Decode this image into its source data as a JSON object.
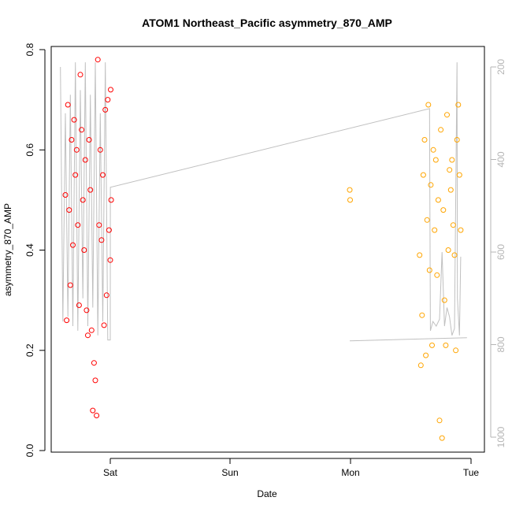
{
  "chart_data": {
    "type": "scatter",
    "title": "ATOM1 Northeast_Pacific asymmetry_870_AMP",
    "xlabel": "Date",
    "ylabel": "asymmetry_870_AMP",
    "x_ticks": [
      "Sat",
      "Sun",
      "Mon",
      "Tue"
    ],
    "y_ticks": [
      "0.0",
      "0.2",
      "0.4",
      "0.6",
      "0.8"
    ],
    "y_right_ticks": [
      "200",
      "400",
      "600",
      "800",
      "1000"
    ],
    "ylim": [
      0,
      0.8
    ],
    "y_right_lim": [
      1025,
      180
    ],
    "grid": false,
    "axis_colors": {
      "left": "#000000",
      "right": "#b5b5b5",
      "line_series": "#c0c0c0"
    },
    "series": [
      {
        "color": "#ff0000",
        "marker": "circle-open",
        "points": [
          [
            "Fri 15:00",
            0.51
          ],
          [
            "Fri 15:15",
            0.26
          ],
          [
            "Fri 15:30",
            0.69
          ],
          [
            "Fri 15:45",
            0.48
          ],
          [
            "Fri 16:00",
            0.33
          ],
          [
            "Fri 16:15",
            0.62
          ],
          [
            "Fri 16:30",
            0.41
          ],
          [
            "Fri 16:45",
            0.66
          ],
          [
            "Fri 17:00",
            0.55
          ],
          [
            "Fri 17:15",
            0.6
          ],
          [
            "Fri 17:30",
            0.45
          ],
          [
            "Fri 17:45",
            0.29
          ],
          [
            "Fri 18:00",
            0.75
          ],
          [
            "Fri 18:15",
            0.64
          ],
          [
            "Fri 18:30",
            0.5
          ],
          [
            "Fri 18:45",
            0.4
          ],
          [
            "Fri 19:00",
            0.58
          ],
          [
            "Fri 19:15",
            0.28
          ],
          [
            "Fri 19:30",
            0.23
          ],
          [
            "Fri 19:45",
            0.62
          ],
          [
            "Fri 20:00",
            0.52
          ],
          [
            "Fri 20:15",
            0.24
          ],
          [
            "Fri 20:30",
            0.08
          ],
          [
            "Fri 20:45",
            0.175
          ],
          [
            "Fri 21:00",
            0.14
          ],
          [
            "Fri 21:15",
            0.07
          ],
          [
            "Fri 21:30",
            0.78
          ],
          [
            "Fri 21:45",
            0.45
          ],
          [
            "Fri 22:00",
            0.6
          ],
          [
            "Fri 22:15",
            0.42
          ],
          [
            "Fri 22:30",
            0.55
          ],
          [
            "Fri 22:45",
            0.25
          ],
          [
            "Fri 23:00",
            0.68
          ],
          [
            "Fri 23:15",
            0.31
          ],
          [
            "Fri 23:30",
            0.7
          ],
          [
            "Fri 23:45",
            0.44
          ],
          [
            "Sat 00:00",
            0.38
          ],
          [
            "Sat 00:05",
            0.72
          ],
          [
            "Sat 00:10",
            0.5
          ]
        ]
      },
      {
        "color": "#ffa500",
        "marker": "circle-open",
        "points": [
          [
            "Mon 00:00",
            0.52
          ],
          [
            "Mon 00:05",
            0.5
          ],
          [
            "Mon 14:00",
            0.39
          ],
          [
            "Mon 14:15",
            0.17
          ],
          [
            "Mon 14:30",
            0.27
          ],
          [
            "Mon 14:45",
            0.55
          ],
          [
            "Mon 15:00",
            0.62
          ],
          [
            "Mon 15:15",
            0.19
          ],
          [
            "Mon 15:30",
            0.46
          ],
          [
            "Mon 15:45",
            0.69
          ],
          [
            "Mon 16:00",
            0.36
          ],
          [
            "Mon 16:15",
            0.53
          ],
          [
            "Mon 16:30",
            0.21
          ],
          [
            "Mon 16:45",
            0.6
          ],
          [
            "Mon 17:00",
            0.44
          ],
          [
            "Mon 17:15",
            0.58
          ],
          [
            "Mon 17:30",
            0.35
          ],
          [
            "Mon 17:45",
            0.5
          ],
          [
            "Mon 18:00",
            0.06
          ],
          [
            "Mon 18:15",
            0.64
          ],
          [
            "Mon 18:30",
            0.025
          ],
          [
            "Mon 18:45",
            0.48
          ],
          [
            "Mon 19:00",
            0.3
          ],
          [
            "Mon 19:15",
            0.21
          ],
          [
            "Mon 19:30",
            0.67
          ],
          [
            "Mon 19:45",
            0.4
          ],
          [
            "Mon 20:00",
            0.56
          ],
          [
            "Mon 20:15",
            0.52
          ],
          [
            "Mon 20:30",
            0.58
          ],
          [
            "Mon 20:45",
            0.45
          ],
          [
            "Mon 21:00",
            0.39
          ],
          [
            "Mon 21:15",
            0.2
          ],
          [
            "Mon 21:30",
            0.62
          ],
          [
            "Mon 21:45",
            0.69
          ],
          [
            "Mon 22:00",
            0.55
          ],
          [
            "Mon 22:15",
            0.44
          ]
        ]
      }
    ],
    "line_series": {
      "axis": "right",
      "segments": [
        [
          [
            "Fri 14:00",
            200
          ],
          [
            "Fri 14:30",
            750
          ],
          [
            "Fri 15:00",
            300
          ],
          [
            "Fri 15:30",
            740
          ],
          [
            "Fri 16:00",
            260
          ],
          [
            "Fri 16:30",
            760
          ],
          [
            "Fri 17:00",
            190
          ],
          [
            "Fri 17:30",
            770
          ],
          [
            "Fri 18:00",
            250
          ],
          [
            "Fri 18:30",
            700
          ],
          [
            "Fri 19:00",
            190
          ],
          [
            "Fri 19:30",
            760
          ],
          [
            "Fri 20:00",
            260
          ],
          [
            "Fri 20:30",
            720
          ],
          [
            "Fri 21:00",
            190
          ],
          [
            "Fri 21:30",
            780
          ],
          [
            "Fri 22:00",
            300
          ],
          [
            "Fri 22:30",
            750
          ],
          [
            "Fri 23:00",
            190
          ],
          [
            "Fri 23:30",
            790
          ],
          [
            "Sat 00:00",
            790
          ],
          [
            "Sat 00:01",
            460
          ],
          [
            "Mon 16:00",
            290
          ],
          [
            "Mon 16:10",
            770
          ],
          [
            "Mon 16:40",
            750
          ],
          [
            "Mon 17:20",
            760
          ],
          [
            "Mon 18:00",
            745
          ],
          [
            "Mon 18:30",
            600
          ],
          [
            "Mon 19:00",
            760
          ],
          [
            "Mon 19:30",
            720
          ],
          [
            "Mon 20:00",
            740
          ],
          [
            "Mon 20:30",
            780
          ],
          [
            "Mon 21:00",
            765
          ],
          [
            "Mon 21:30",
            190
          ],
          [
            "Mon 21:35",
            700
          ],
          [
            "Mon 22:00",
            780
          ],
          [
            "Mon 22:15",
            610
          ]
        ],
        [
          [
            "Mon 00:00",
            792
          ],
          [
            "Mon 23:30",
            785
          ]
        ]
      ]
    }
  }
}
